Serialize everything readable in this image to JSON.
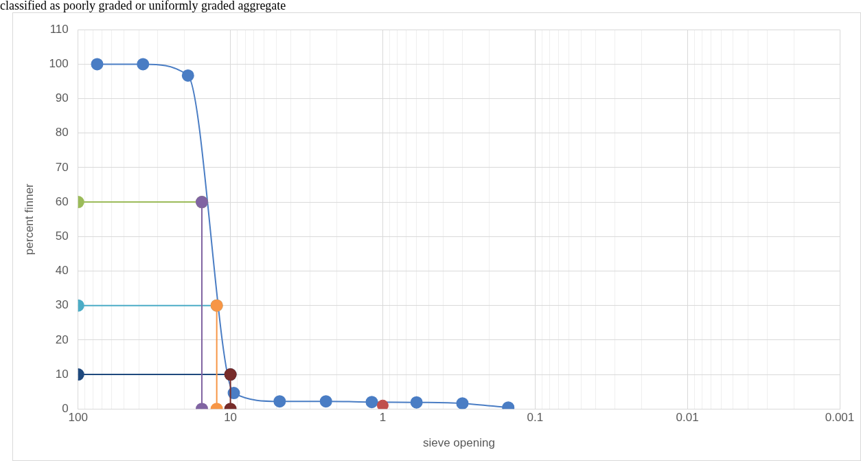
{
  "chart_data": {
    "type": "line",
    "annotations": [
      "classified as poorly graded or uniformly graded aggregate"
    ],
    "xlabel": "sieve opening",
    "ylabel": "percent finner",
    "log": "x",
    "grid": true,
    "legend": false,
    "marker": "circle",
    "line_style": "solid",
    "xlim": [
      100,
      0.001
    ],
    "ylim": [
      0,
      110
    ],
    "xticks": [
      100,
      {
        "value": 90,
        "label": null
      },
      {
        "value": 80,
        "label": null
      },
      {
        "value": 70,
        "label": null
      },
      {
        "value": 60,
        "label": null
      },
      {
        "value": 50,
        "label": null
      },
      {
        "value": 40,
        "label": null
      },
      {
        "value": 30,
        "label": null
      },
      {
        "value": 20,
        "label": null
      },
      10,
      {
        "value": 9,
        "label": null
      },
      {
        "value": 8,
        "label": null
      },
      {
        "value": 7,
        "label": null
      },
      {
        "value": 6,
        "label": null
      },
      {
        "value": 5,
        "label": null
      },
      {
        "value": 4,
        "label": null
      },
      {
        "value": 3,
        "label": null
      },
      {
        "value": 2,
        "label": null
      },
      1,
      {
        "value": 0.9,
        "label": null
      },
      {
        "value": 0.8,
        "label": null
      },
      {
        "value": 0.7,
        "label": null
      },
      {
        "value": 0.6,
        "label": null
      },
      {
        "value": 0.5,
        "label": null
      },
      {
        "value": 0.4,
        "label": null
      },
      {
        "value": 0.3,
        "label": null
      },
      {
        "value": 0.2,
        "label": null
      },
      0.1,
      {
        "value": 0.09,
        "label": null
      },
      {
        "value": 0.08,
        "label": null
      },
      {
        "value": 0.07,
        "label": null
      },
      {
        "value": 0.06,
        "label": null
      },
      {
        "value": 0.05,
        "label": null
      },
      {
        "value": 0.04,
        "label": null
      },
      {
        "value": 0.03,
        "label": null
      },
      {
        "value": 0.02,
        "label": null
      },
      0.01,
      {
        "value": 0.009,
        "label": null
      },
      {
        "value": 0.008,
        "label": null
      },
      {
        "value": 0.007,
        "label": null
      },
      {
        "value": 0.006,
        "label": null
      },
      {
        "value": 0.005,
        "label": null
      },
      {
        "value": 0.004,
        "label": null
      },
      {
        "value": 0.003,
        "label": null
      },
      {
        "value": 0.002,
        "label": null
      },
      0.001
    ],
    "yticks": [
      0,
      10,
      20,
      30,
      40,
      50,
      60,
      70,
      80,
      90,
      100,
      110
    ],
    "series": [
      {
        "color": "#4a7dc4",
        "x": [
          75,
          37.5,
          19,
          9.5,
          4.75,
          2.36,
          1.18,
          0.6,
          0.3,
          0.15
        ],
        "values": [
          100,
          100,
          96.7,
          4.6,
          2.2,
          2.2,
          2.0,
          1.9,
          1.6,
          0.4
        ]
      },
      {
        "color": "#9bbb59",
        "x": [
          100,
          15.4
        ],
        "values": [
          60,
          60
        ]
      },
      {
        "color": "#4bacc6",
        "x": [
          100,
          12.3
        ],
        "values": [
          30,
          30
        ]
      },
      {
        "color": "#1f497d",
        "x": [
          100,
          10
        ],
        "values": [
          10,
          10
        ]
      },
      {
        "color": "#8064a2",
        "x": [
          15.4,
          15.4
        ],
        "values": [
          60,
          0
        ]
      },
      {
        "color": "#f79646",
        "x": [
          12.3,
          12.3
        ],
        "values": [
          30,
          0
        ]
      },
      {
        "color": "#772c2a",
        "x": [
          10,
          10
        ],
        "values": [
          10,
          0
        ]
      },
      {
        "type": "scatter",
        "color": "#c0504d",
        "x": [
          1
        ],
        "values": [
          1
        ]
      }
    ]
  }
}
